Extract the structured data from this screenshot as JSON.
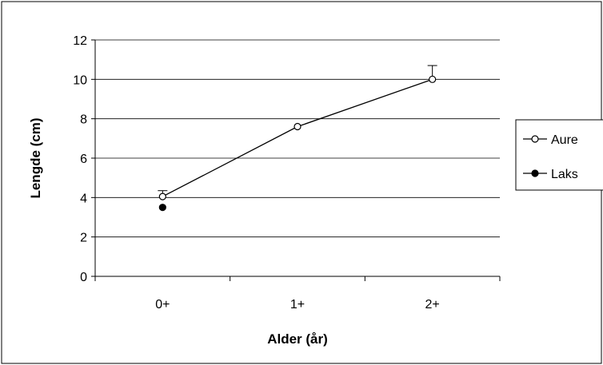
{
  "chart_data": {
    "type": "line",
    "title": "",
    "xlabel": "Alder (år)",
    "ylabel": "Lengde (cm)",
    "categories": [
      "0+",
      "1+",
      "2+"
    ],
    "ylim": [
      0,
      12
    ],
    "yticks": [
      "0",
      "2",
      "4",
      "6",
      "8",
      "10",
      "12"
    ],
    "grid": true,
    "legend_position": "right",
    "series": [
      {
        "name": "Aure",
        "values": [
          4.05,
          7.6,
          10.0
        ],
        "error_upper": [
          0.3,
          0,
          0.7
        ],
        "marker": "open-circle",
        "line": true,
        "color": "#000000"
      },
      {
        "name": "Laks",
        "values": [
          3.5,
          null,
          null
        ],
        "marker": "filled-circle",
        "line": false,
        "color": "#000000"
      }
    ]
  }
}
